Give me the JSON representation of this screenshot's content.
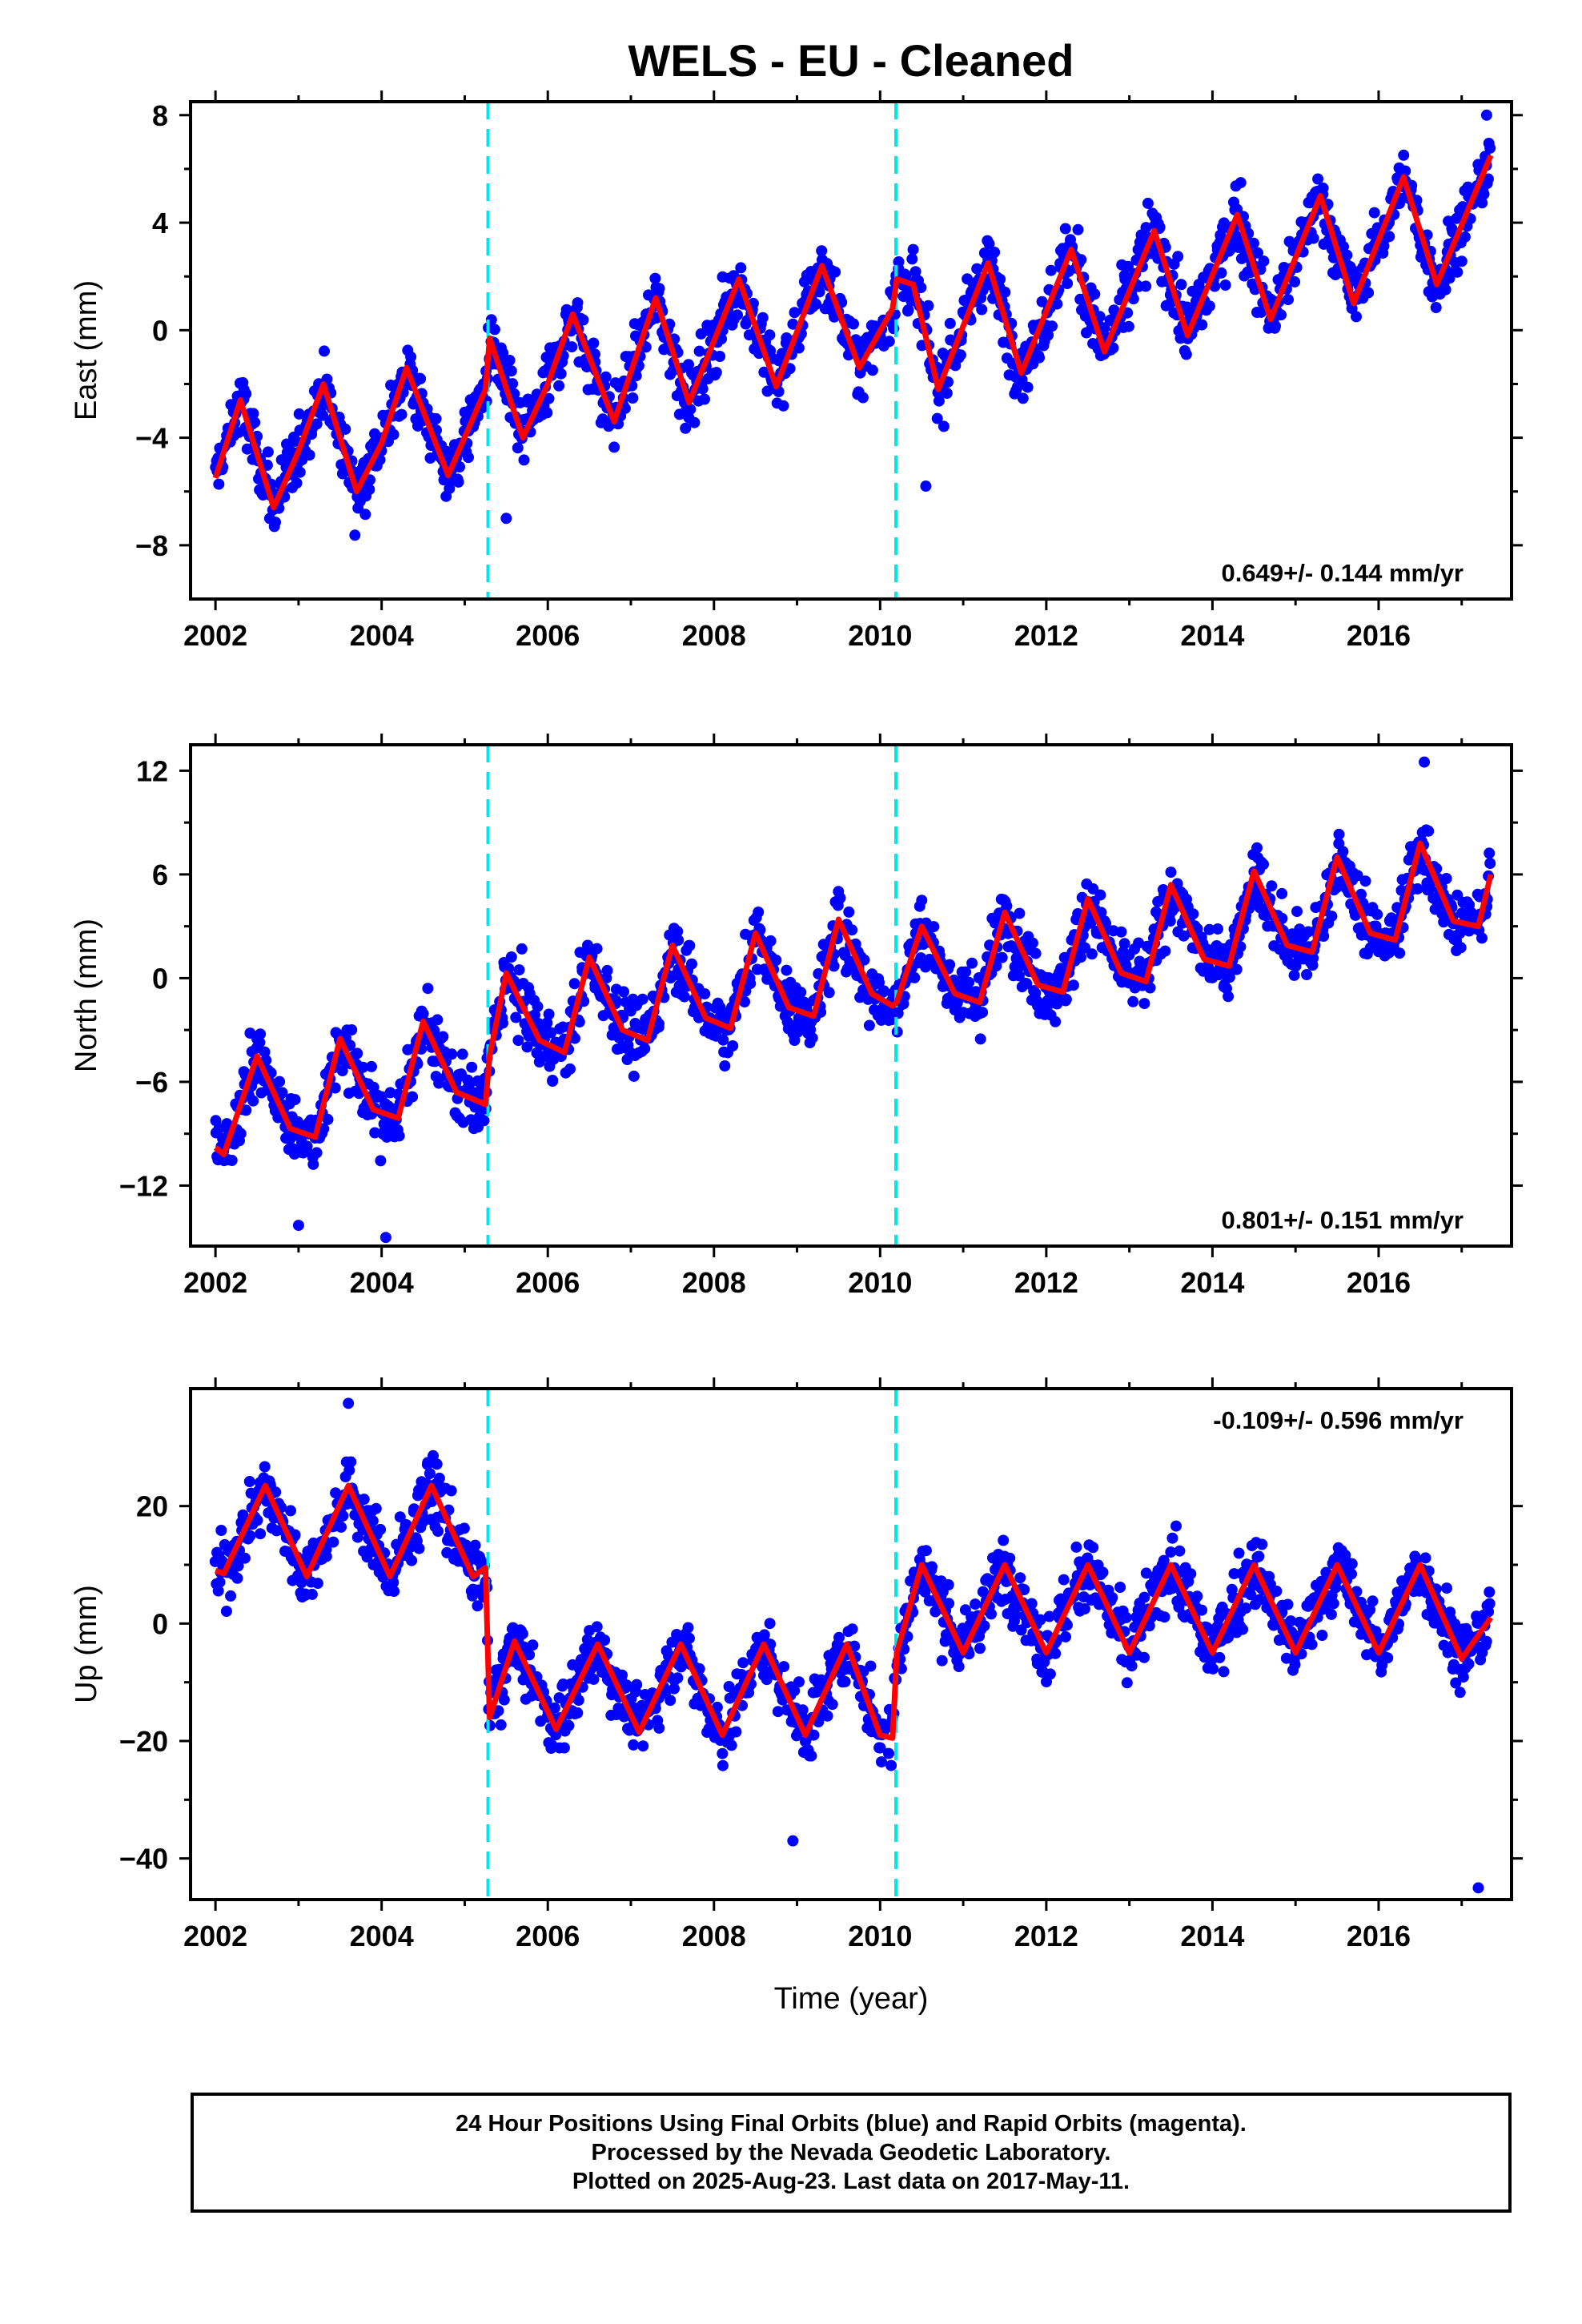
{
  "title": "WELS  - EU - Cleaned",
  "xlabel": "Time (year)",
  "colors": {
    "points": "#0000ff",
    "model": "#ff0000",
    "offsets": "#00e5ee"
  },
  "footer": {
    "line1": "24 Hour Positions Using Final Orbits (blue) and Rapid Orbits (magenta).",
    "line2": "Processed by the Nevada Geodetic Laboratory.",
    "line3": "Plotted on 2025-Aug-23. Last data on 2017-May-11."
  },
  "chart_data": [
    {
      "type": "scatter",
      "component": "east",
      "ylabel": "East (mm)",
      "rate_label": "0.649+/- 0.144 mm/yr",
      "rate_position": "bottom-right",
      "xlim": [
        2001.7,
        2017.6
      ],
      "ylim": [
        -10,
        8.5
      ],
      "xticks": [
        2002,
        2004,
        2006,
        2008,
        2010,
        2012,
        2014,
        2016
      ],
      "yticks": [
        -8,
        -4,
        0,
        4,
        8
      ],
      "offsets": [
        2005.28,
        2010.19
      ],
      "model": {
        "x": [
          2002.0,
          2002.3,
          2002.7,
          2003.0,
          2003.3,
          2003.7,
          2004.0,
          2004.3,
          2004.8,
          2005.25,
          2005.3,
          2005.7,
          2006.0,
          2006.3,
          2006.8,
          2007.3,
          2007.7,
          2008.3,
          2008.75,
          2009.3,
          2009.75,
          2010.15,
          2010.2,
          2010.4,
          2010.7,
          2011.3,
          2011.7,
          2012.3,
          2012.7,
          2013.3,
          2013.7,
          2014.3,
          2014.7,
          2015.3,
          2015.7,
          2016.3,
          2016.7,
          2017.35
        ],
        "y": [
          -5.5,
          -2.6,
          -6.6,
          -4.5,
          -2.0,
          -6.0,
          -4.2,
          -1.4,
          -5.4,
          -2.2,
          -0.3,
          -4.0,
          -2.0,
          0.6,
          -3.4,
          1.2,
          -2.7,
          1.9,
          -2.1,
          2.4,
          -1.4,
          0.8,
          1.9,
          1.7,
          -2.2,
          2.5,
          -1.6,
          3.0,
          -0.8,
          3.7,
          -0.2,
          4.3,
          0.4,
          5.0,
          1.0,
          5.7,
          1.7,
          6.5
        ]
      },
      "points": {
        "x": [
          2005.5,
          2010.55,
          2017.3
        ],
        "y": [
          -7.0,
          -5.8,
          8.0
        ]
      }
    },
    {
      "type": "scatter",
      "component": "north",
      "ylabel": "North (mm)",
      "rate_label": "0.801+/- 0.151 mm/yr",
      "rate_position": "bottom-right",
      "xlim": [
        2001.7,
        2017.6
      ],
      "ylim": [
        -15.5,
        13.5
      ],
      "xticks": [
        2002,
        2004,
        2006,
        2008,
        2010,
        2012,
        2014,
        2016
      ],
      "yticks": [
        -12,
        -6,
        0,
        6,
        12
      ],
      "offsets": [
        2005.28,
        2010.19
      ],
      "model": {
        "x": [
          2002.0,
          2002.1,
          2002.5,
          2002.9,
          2003.2,
          2003.5,
          2003.9,
          2004.2,
          2004.5,
          2004.9,
          2005.25,
          2005.3,
          2005.5,
          2005.9,
          2006.2,
          2006.5,
          2006.9,
          2007.2,
          2007.5,
          2007.9,
          2008.2,
          2008.5,
          2008.9,
          2009.2,
          2009.5,
          2009.9,
          2010.15,
          2010.2,
          2010.5,
          2010.9,
          2011.2,
          2011.5,
          2011.9,
          2012.2,
          2012.5,
          2012.9,
          2013.2,
          2013.5,
          2013.9,
          2014.2,
          2014.5,
          2014.9,
          2015.2,
          2015.5,
          2015.9,
          2016.2,
          2016.5,
          2016.9,
          2017.2,
          2017.35
        ],
        "y": [
          -9.8,
          -10.2,
          -4.5,
          -8.7,
          -9.2,
          -3.5,
          -7.6,
          -8.1,
          -2.5,
          -6.6,
          -7.3,
          -4.5,
          0.3,
          -3.6,
          -4.3,
          1.2,
          -3.0,
          -3.6,
          1.9,
          -2.3,
          -2.9,
          2.6,
          -1.7,
          -2.2,
          3.4,
          -0.9,
          -1.6,
          -1.4,
          3.0,
          -0.9,
          -1.4,
          3.8,
          -0.4,
          -0.8,
          4.6,
          0.3,
          -0.2,
          5.4,
          1.1,
          0.7,
          6.2,
          1.9,
          1.5,
          7.0,
          2.6,
          2.2,
          7.8,
          3.3,
          3.0,
          6.0
        ]
      },
      "points": {
        "x": [
          2003.0,
          2004.05,
          2016.55
        ],
        "y": [
          -14.3,
          -15.0,
          12.5
        ]
      }
    },
    {
      "type": "scatter",
      "component": "up",
      "ylabel": "Up (mm)",
      "rate_label": "-0.109+/- 0.596 mm/yr",
      "rate_position": "top-right",
      "xlim": [
        2001.7,
        2017.6
      ],
      "ylim": [
        -47,
        40
      ],
      "xticks": [
        2002,
        2004,
        2006,
        2008,
        2010,
        2012,
        2014,
        2016
      ],
      "yticks": [
        -40,
        -20,
        0,
        20
      ],
      "offsets": [
        2005.28,
        2010.19
      ],
      "model": {
        "x": [
          2002.0,
          2002.1,
          2002.6,
          2003.1,
          2003.6,
          2004.1,
          2004.6,
          2005.1,
          2005.25,
          2005.3,
          2005.6,
          2006.1,
          2006.6,
          2007.1,
          2007.6,
          2008.1,
          2008.6,
          2009.1,
          2009.6,
          2010.0,
          2010.15,
          2010.2,
          2010.5,
          2011.0,
          2011.5,
          2012.0,
          2012.5,
          2013.0,
          2013.5,
          2014.0,
          2014.5,
          2015.0,
          2015.5,
          2016.0,
          2016.5,
          2017.0,
          2017.35
        ],
        "y": [
          9,
          8.5,
          23.5,
          8,
          23.5,
          8,
          23.5,
          8,
          9.5,
          -16,
          -3,
          -18,
          -3.5,
          -18.5,
          -3.5,
          -19,
          -3.5,
          -19,
          -3.5,
          -19,
          -19.5,
          -5,
          10,
          -5,
          10,
          -5,
          10,
          -5,
          10,
          -5,
          10,
          -5,
          10,
          -5,
          10,
          -6,
          1
        ]
      },
      "points": {
        "x": [
          2003.6,
          2008.95,
          2017.2
        ],
        "y": [
          37.5,
          -37.0,
          -45.0
        ]
      }
    }
  ]
}
